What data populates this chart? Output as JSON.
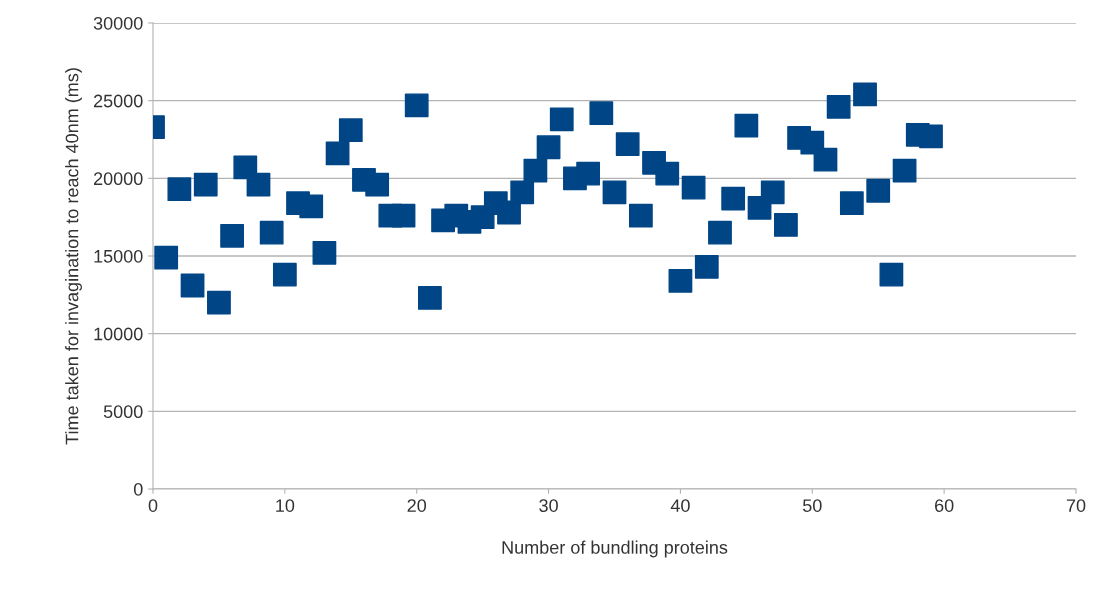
{
  "chart_data": {
    "type": "scatter",
    "xlabel": "Number of bundling proteins",
    "ylabel": "Time taken for invagination to reach 40nm (ms)",
    "x": [
      0,
      1,
      2,
      3,
      4,
      5,
      6,
      7,
      8,
      9,
      10,
      11,
      12,
      13,
      14,
      15,
      16,
      17,
      18,
      19,
      20,
      21,
      22,
      23,
      24,
      25,
      26,
      27,
      28,
      29,
      30,
      31,
      32,
      33,
      34,
      35,
      36,
      37,
      38,
      39,
      40,
      41,
      42,
      43,
      44,
      45,
      46,
      47,
      48,
      49,
      50,
      51,
      52,
      53,
      54,
      55,
      56,
      57,
      58,
      59
    ],
    "series": [
      {
        "color": "#004586",
        "values": [
          23300,
          14900,
          19300,
          13100,
          19600,
          12000,
          16300,
          20700,
          19600,
          16500,
          13800,
          18400,
          18200,
          15200,
          21600,
          23100,
          19900,
          19600,
          17600,
          17600,
          24700,
          12300,
          17300,
          17600,
          17200,
          17500,
          18400,
          17800,
          19100,
          20500,
          22000,
          23800,
          20000,
          20300,
          24200,
          19100,
          22200,
          17600,
          21000,
          20300,
          13400,
          19400,
          14300,
          16500,
          18700,
          23400,
          18100,
          19100,
          17000,
          22600,
          22300,
          21200,
          24600,
          18400,
          25400,
          19200,
          13800,
          20500,
          22800,
          22700
        ]
      }
    ],
    "xlim": [
      0,
      70
    ],
    "xticks": [
      0,
      10,
      20,
      30,
      40,
      50,
      60,
      70
    ],
    "ylim": [
      0,
      30000
    ],
    "yticks": [
      0,
      5000,
      10000,
      15000,
      20000,
      25000,
      30000
    ],
    "grid": "y",
    "marker": "square"
  }
}
